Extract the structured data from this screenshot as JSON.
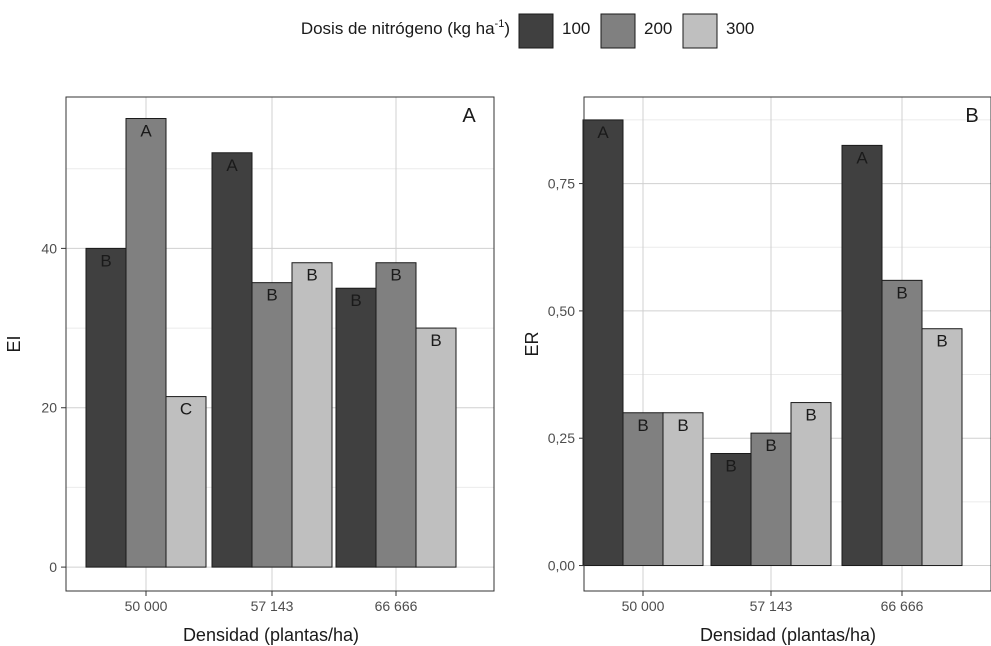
{
  "legend": {
    "title": "Dosis de nitrógeno (kg ha",
    "title_sup": "-1",
    "title_end": ")",
    "items": [
      {
        "label": "100",
        "color": "#404040"
      },
      {
        "label": "200",
        "color": "#808080"
      },
      {
        "label": "300",
        "color": "#bfbfbf"
      }
    ]
  },
  "chart_data": [
    {
      "type": "bar",
      "panel_label": "A",
      "xlabel": "Densidad (plantas/ha)",
      "ylabel": "EI",
      "categories": [
        "50 000",
        "57 143",
        "66 666"
      ],
      "ylim": [
        -3,
        59
      ],
      "yticks": [
        {
          "value": 0,
          "label": "0"
        },
        {
          "value": 20,
          "label": "20"
        },
        {
          "value": 40,
          "label": "40"
        }
      ],
      "minor_yticks": [
        10,
        30,
        50
      ],
      "grid": true,
      "series": [
        {
          "name": "100",
          "values": [
            40,
            52,
            35
          ],
          "labels": [
            "B",
            "A",
            "B"
          ]
        },
        {
          "name": "200",
          "values": [
            56.3,
            35.7,
            38.2
          ],
          "labels": [
            "A",
            "B",
            "B"
          ]
        },
        {
          "name": "300",
          "values": [
            21.4,
            38.2,
            30
          ],
          "labels": [
            "C",
            "B",
            "B"
          ]
        }
      ]
    },
    {
      "type": "bar",
      "panel_label": "B",
      "xlabel": "Densidad (plantas/ha)",
      "ylabel": "ER",
      "categories": [
        "50 000",
        "57 143",
        "66 666"
      ],
      "ylim": [
        -0.05,
        0.92
      ],
      "yticks": [
        {
          "value": 0,
          "label": "0,00"
        },
        {
          "value": 0.25,
          "label": "0,25"
        },
        {
          "value": 0.5,
          "label": "0,50"
        },
        {
          "value": 0.75,
          "label": "0,75"
        }
      ],
      "minor_yticks": [
        0.125,
        0.375,
        0.625,
        0.875
      ],
      "grid": true,
      "series": [
        {
          "name": "100",
          "values": [
            0.875,
            0.22,
            0.825
          ],
          "labels": [
            "A",
            "B",
            "A"
          ]
        },
        {
          "name": "200",
          "values": [
            0.3,
            0.26,
            0.56
          ],
          "labels": [
            "B",
            "B",
            "B"
          ]
        },
        {
          "name": "300",
          "values": [
            0.3,
            0.32,
            0.465
          ],
          "labels": [
            "B",
            "B",
            "B"
          ]
        }
      ]
    }
  ]
}
